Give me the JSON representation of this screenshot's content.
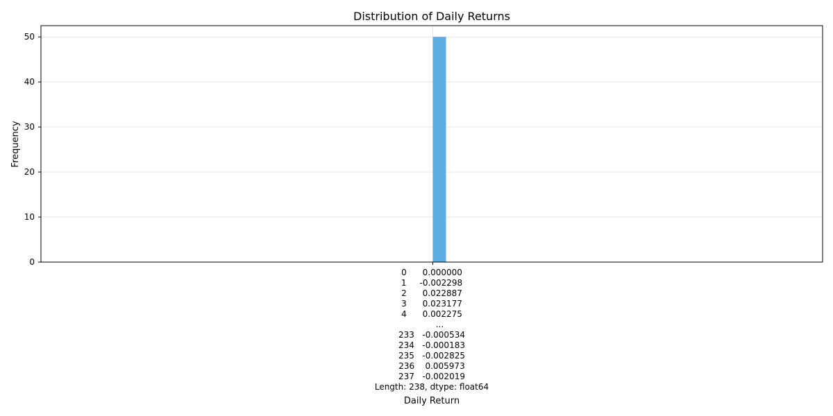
{
  "chart_data": {
    "type": "bar",
    "title": "Distribution of Daily Returns",
    "xlabel": "Daily Return",
    "ylabel": "Frequency",
    "ylim": [
      0,
      52.5
    ],
    "yticks": [
      "0",
      "10",
      "20",
      "30",
      "40",
      "50"
    ],
    "grid": true,
    "colors": {
      "bar": "#5DADE2",
      "grid": "#e6e6e6",
      "axis": "#000000"
    },
    "bars": [
      {
        "value": 50
      }
    ],
    "xtick_label_lines": [
      "0      0.000000",
      "1     -0.002298",
      "2      0.022887",
      "3      0.023177",
      "4      0.002275",
      "         ...   ",
      "233   -0.000534",
      "234   -0.000183",
      "235   -0.002825",
      "236    0.005973",
      "237   -0.002019",
      "Length: 238, dtype: float64"
    ]
  }
}
